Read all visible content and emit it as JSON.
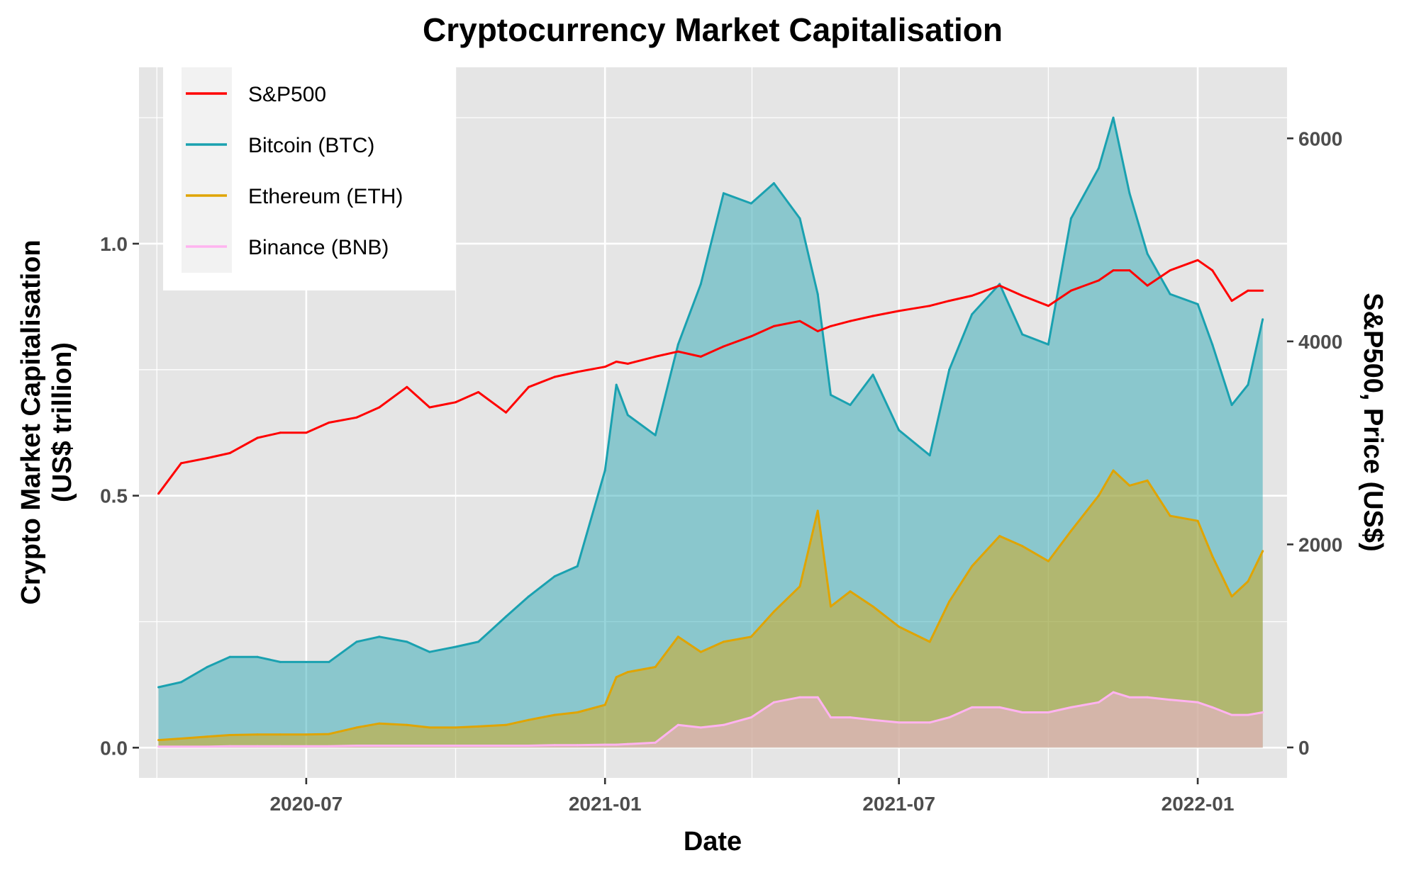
{
  "chart_data": {
    "type": "area",
    "title": "Cryptocurrency Market Capitalisation",
    "xlabel": "Date",
    "ylabel_left_line1": "Crypto Market Capitalisation",
    "ylabel_left_line2": "(US$ trillion)",
    "ylabel_right": "S&P500, Price (US$)",
    "x_ticks": [
      "2020-07",
      "2021-01",
      "2021-07",
      "2022-01"
    ],
    "x_tick_dates": [
      "2020-07-01",
      "2021-01-01",
      "2021-07-01",
      "2022-01-01"
    ],
    "x_range": [
      "2020-03-20",
      "2022-02-25"
    ],
    "y_left_ticks": [
      "0.0",
      "0.5",
      "1.0"
    ],
    "y_left_tick_values": [
      0,
      0.5,
      1.0
    ],
    "y_left_range": [
      -0.06,
      1.35
    ],
    "y_right_ticks": [
      "0",
      "2000",
      "4000",
      "6000"
    ],
    "y_right_tick_values": [
      0,
      2000,
      4000,
      6000
    ],
    "y_right_range": [
      -300,
      6700
    ],
    "grid": true,
    "legend_position": "top-left",
    "x": [
      "2020-04-01",
      "2020-04-15",
      "2020-05-01",
      "2020-05-15",
      "2020-06-01",
      "2020-06-15",
      "2020-07-01",
      "2020-07-15",
      "2020-08-01",
      "2020-08-15",
      "2020-09-01",
      "2020-09-15",
      "2020-10-01",
      "2020-10-15",
      "2020-11-01",
      "2020-11-15",
      "2020-12-01",
      "2020-12-15",
      "2021-01-01",
      "2021-01-08",
      "2021-01-15",
      "2021-02-01",
      "2021-02-15",
      "2021-03-01",
      "2021-03-15",
      "2021-04-01",
      "2021-04-15",
      "2021-05-01",
      "2021-05-12",
      "2021-05-20",
      "2021-06-01",
      "2021-06-15",
      "2021-07-01",
      "2021-07-20",
      "2021-08-01",
      "2021-08-15",
      "2021-09-01",
      "2021-09-15",
      "2021-10-01",
      "2021-10-15",
      "2021-11-01",
      "2021-11-10",
      "2021-11-20",
      "2021-12-01",
      "2021-12-15",
      "2022-01-01",
      "2022-01-10",
      "2022-01-22",
      "2022-02-01",
      "2022-02-10"
    ],
    "series": [
      {
        "name": "S&P500",
        "axis": "right",
        "color": "#ff0000",
        "fill": false,
        "values": [
          2500,
          2800,
          2850,
          2900,
          3050,
          3100,
          3100,
          3200,
          3250,
          3350,
          3550,
          3350,
          3400,
          3500,
          3300,
          3550,
          3650,
          3700,
          3750,
          3800,
          3780,
          3850,
          3900,
          3850,
          3950,
          4050,
          4150,
          4200,
          4100,
          4150,
          4200,
          4250,
          4300,
          4350,
          4400,
          4450,
          4550,
          4450,
          4350,
          4500,
          4600,
          4700,
          4700,
          4550,
          4700,
          4800,
          4700,
          4400,
          4500,
          4500
        ]
      },
      {
        "name": "Bitcoin (BTC)",
        "axis": "left",
        "color": "#1aa1b0",
        "fill": true,
        "values": [
          0.12,
          0.13,
          0.16,
          0.18,
          0.18,
          0.17,
          0.17,
          0.17,
          0.21,
          0.22,
          0.21,
          0.19,
          0.2,
          0.21,
          0.26,
          0.3,
          0.34,
          0.36,
          0.55,
          0.72,
          0.66,
          0.62,
          0.8,
          0.92,
          1.1,
          1.08,
          1.12,
          1.05,
          0.9,
          0.7,
          0.68,
          0.74,
          0.63,
          0.58,
          0.75,
          0.86,
          0.92,
          0.82,
          0.8,
          1.05,
          1.15,
          1.25,
          1.1,
          0.98,
          0.9,
          0.88,
          0.8,
          0.68,
          0.72,
          0.85
        ]
      },
      {
        "name": "Ethereum (ETH)",
        "axis": "left",
        "color": "#e0a400",
        "fill": true,
        "values": [
          0.015,
          0.018,
          0.022,
          0.025,
          0.026,
          0.026,
          0.026,
          0.027,
          0.04,
          0.048,
          0.045,
          0.04,
          0.04,
          0.042,
          0.045,
          0.055,
          0.065,
          0.07,
          0.085,
          0.14,
          0.15,
          0.16,
          0.22,
          0.19,
          0.21,
          0.22,
          0.27,
          0.32,
          0.47,
          0.28,
          0.31,
          0.28,
          0.24,
          0.21,
          0.29,
          0.36,
          0.42,
          0.4,
          0.37,
          0.43,
          0.5,
          0.55,
          0.52,
          0.53,
          0.46,
          0.45,
          0.38,
          0.3,
          0.33,
          0.39
        ]
      },
      {
        "name": "Binance (BNB)",
        "axis": "left",
        "color": "#ffb3f0",
        "fill": true,
        "values": [
          0.002,
          0.002,
          0.002,
          0.003,
          0.003,
          0.003,
          0.003,
          0.003,
          0.004,
          0.004,
          0.004,
          0.004,
          0.004,
          0.004,
          0.004,
          0.004,
          0.005,
          0.005,
          0.006,
          0.006,
          0.007,
          0.01,
          0.045,
          0.04,
          0.045,
          0.06,
          0.09,
          0.1,
          0.1,
          0.06,
          0.06,
          0.055,
          0.05,
          0.05,
          0.06,
          0.08,
          0.08,
          0.07,
          0.07,
          0.08,
          0.09,
          0.11,
          0.1,
          0.1,
          0.095,
          0.09,
          0.08,
          0.065,
          0.065,
          0.07
        ]
      }
    ]
  }
}
